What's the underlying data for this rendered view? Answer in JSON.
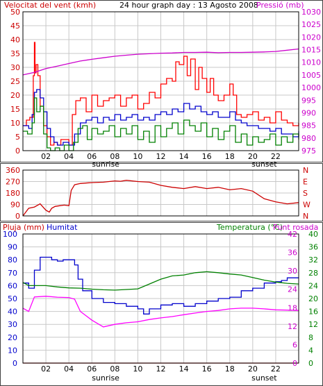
{
  "chart_data": [
    {
      "type": "line",
      "title": "24 hour graph day : 13 Agosto 2008",
      "left_axis_label": "Velocitat del vent (kmh)",
      "right_axis_label": "Pressió (mb)",
      "ylim": [
        0,
        50
      ],
      "yticks": [
        "0",
        "5",
        "10",
        "15",
        "20",
        "25",
        "30",
        "35",
        "40",
        "45",
        "50"
      ],
      "y2lim": [
        975,
        1030
      ],
      "y2ticks": [
        "975",
        "980",
        "985",
        "990",
        "995",
        "1000",
        "1005",
        "1010",
        "1015",
        "1020",
        "1025",
        "1030"
      ],
      "xlim": [
        0,
        24
      ],
      "xticks": [
        "02",
        "04",
        "06",
        "08",
        "10",
        "12",
        "14",
        "16",
        "18",
        "20",
        "22"
      ],
      "markers": [
        {
          "x": 7.2,
          "label": "sunrise"
        },
        {
          "x": 21.0,
          "label": "sunset"
        }
      ],
      "colors": {
        "gust": "#ff0000",
        "average": "#0000cc",
        "speed": "#008000",
        "pressure": "#cc00cc",
        "grid": "#c8c8c8"
      },
      "series": [
        {
          "axis": "left",
          "key": "gust",
          "x": [
            0,
            0.3,
            0.6,
            0.9,
            1.0,
            1.05,
            1.15,
            1.3,
            1.5,
            1.8,
            2.1,
            2.4,
            2.7,
            3.0,
            3.3,
            3.6,
            4.0,
            4.3,
            4.6,
            5.0,
            5.5,
            6.0,
            6.5,
            7.0,
            7.5,
            8.0,
            8.5,
            9.0,
            9.5,
            10.0,
            10.5,
            11.0,
            11.5,
            12.0,
            12.5,
            13.0,
            13.3,
            13.6,
            14.0,
            14.3,
            14.6,
            15.0,
            15.3,
            15.6,
            16.0,
            16.3,
            16.6,
            17.0,
            17.5,
            18.0,
            18.3,
            18.6,
            19.0,
            19.5,
            20.0,
            20.5,
            21.0,
            21.5,
            22.0,
            22.5,
            23.0,
            23.5,
            24.0
          ],
          "y": [
            9,
            11,
            12,
            27,
            39,
            28,
            31,
            27,
            16,
            9,
            5,
            2,
            3,
            2,
            4,
            4,
            2,
            13,
            18,
            19,
            14,
            20,
            16,
            18,
            19,
            20,
            16,
            19,
            20,
            15,
            17,
            21,
            19,
            24,
            26,
            25,
            32,
            31,
            34,
            27,
            33,
            22,
            30,
            26,
            21,
            26,
            20,
            18,
            20,
            24,
            20,
            13,
            12,
            13,
            14,
            11,
            12,
            10,
            14,
            11,
            10,
            9,
            10
          ]
        },
        {
          "axis": "left",
          "key": "average",
          "x": [
            0,
            0.5,
            0.8,
            1.0,
            1.2,
            1.5,
            1.8,
            2.1,
            2.4,
            2.7,
            3.0,
            3.5,
            4.0,
            4.5,
            5.0,
            5.5,
            6.0,
            6.5,
            7.0,
            7.5,
            8.0,
            8.5,
            9.0,
            9.5,
            10.0,
            10.5,
            11.0,
            11.5,
            12.0,
            12.5,
            13.0,
            13.5,
            14.0,
            14.5,
            15.0,
            15.5,
            16.0,
            16.5,
            17.0,
            17.5,
            18.0,
            18.5,
            19.0,
            19.5,
            20.0,
            20.5,
            21.0,
            21.5,
            22.0,
            22.5,
            23.0,
            23.5,
            24.0
          ],
          "y": [
            9,
            8,
            13,
            21,
            22,
            19,
            14,
            8,
            5,
            3,
            2,
            3,
            2,
            6,
            10,
            11,
            12,
            10,
            12,
            11,
            13,
            11,
            12,
            13,
            11,
            12,
            11,
            13,
            14,
            13,
            15,
            14,
            17,
            15,
            16,
            14,
            13,
            14,
            12,
            12,
            14,
            11,
            10,
            9,
            9,
            8,
            8,
            7,
            8,
            6,
            6,
            5,
            7
          ]
        },
        {
          "axis": "left",
          "key": "speed",
          "x": [
            0,
            0.4,
            0.8,
            1.0,
            1.2,
            1.5,
            1.8,
            2.1,
            2.4,
            2.8,
            3.2,
            3.6,
            4.0,
            4.4,
            4.8,
            5.2,
            5.6,
            6.0,
            6.5,
            7.0,
            7.5,
            8.0,
            8.5,
            9.0,
            9.5,
            10.0,
            10.5,
            11.0,
            11.5,
            12.0,
            12.5,
            13.0,
            13.5,
            14.0,
            14.5,
            15.0,
            15.5,
            16.0,
            16.5,
            17.0,
            17.5,
            18.0,
            18.5,
            19.0,
            19.5,
            20.0,
            20.5,
            21.0,
            21.5,
            22.0,
            22.5,
            23.0,
            23.5,
            24.0
          ],
          "y": [
            7,
            6,
            10,
            19,
            14,
            16,
            6,
            1,
            0,
            1,
            0,
            2,
            0,
            3,
            8,
            9,
            4,
            8,
            6,
            7,
            9,
            5,
            8,
            6,
            9,
            4,
            7,
            3,
            9,
            5,
            8,
            10,
            6,
            11,
            9,
            7,
            10,
            5,
            8,
            4,
            7,
            9,
            3,
            6,
            2,
            5,
            3,
            4,
            6,
            2,
            5,
            3,
            6,
            4
          ]
        },
        {
          "axis": "right",
          "key": "pressure",
          "x": [
            0,
            1,
            2,
            3,
            4,
            5,
            6,
            7,
            8,
            9,
            10,
            11,
            12,
            13,
            14,
            15,
            16,
            17,
            18,
            19,
            20,
            21,
            22,
            23,
            24
          ],
          "y": [
            1005,
            1006,
            1007.5,
            1008.5,
            1009.5,
            1010.5,
            1011.2,
            1011.8,
            1012.4,
            1012.8,
            1013.2,
            1013.4,
            1013.6,
            1013.7,
            1013.9,
            1013.9,
            1014,
            1013.8,
            1013.9,
            1013.9,
            1014,
            1014.1,
            1014.3,
            1014.8,
            1015.3
          ]
        }
      ]
    },
    {
      "type": "line",
      "left_ticks": [
        "0",
        "90",
        "180",
        "270",
        "360"
      ],
      "ylim": [
        0,
        360
      ],
      "right_labels": [
        "N",
        "W",
        "S",
        "E",
        "N"
      ],
      "xlim": [
        0,
        24
      ],
      "colors": {
        "direction": "#cc0000",
        "grid": "#c8c8c8"
      },
      "series": [
        {
          "key": "direction",
          "x": [
            0,
            0.5,
            1.0,
            1.5,
            2.0,
            2.3,
            2.5,
            2.8,
            3.2,
            3.6,
            4.0,
            4.2,
            4.5,
            5.0,
            6.0,
            7.0,
            8.0,
            8.5,
            9.0,
            10.0,
            11.0,
            12.0,
            13.0,
            14.0,
            15.0,
            16.0,
            17.0,
            18.0,
            19.0,
            20.0,
            21.0,
            22.0,
            23.0,
            24.0
          ],
          "y": [
            0,
            60,
            70,
            95,
            45,
            30,
            60,
            75,
            80,
            85,
            80,
            200,
            245,
            255,
            262,
            265,
            275,
            272,
            280,
            270,
            265,
            240,
            225,
            215,
            230,
            215,
            225,
            205,
            215,
            195,
            135,
            110,
            95,
            105
          ]
        }
      ]
    },
    {
      "type": "line",
      "left_axis_label": "Pluja (mm)",
      "left_axis_label2": "Humitat",
      "right_axis_label": "Temperatura (°C)",
      "right_axis_label2": "Punt rosada",
      "ylim": [
        0,
        100
      ],
      "yticks": [
        "0",
        "10",
        "20",
        "30",
        "40",
        "50",
        "60",
        "70",
        "80",
        "90",
        "100"
      ],
      "y2lim": [
        0,
        40
      ],
      "y2ticks": [
        "0",
        "4",
        "8",
        "12",
        "16",
        "20",
        "24",
        "28",
        "32",
        "36",
        "40"
      ],
      "yticks_inner": [
        "0",
        "6",
        "12",
        "18",
        "24",
        "30",
        "36",
        "42"
      ],
      "xlim": [
        0,
        24
      ],
      "xticks": [
        "02",
        "04",
        "06",
        "08",
        "10",
        "12",
        "14",
        "16",
        "18",
        "20",
        "22"
      ],
      "markers": [
        {
          "x": 7.2,
          "label": "sunrise"
        },
        {
          "x": 21.0,
          "label": "sunset"
        }
      ],
      "colors": {
        "humidity": "#0000cc",
        "temperature": "#008000",
        "dewpoint": "#ff00ff",
        "rain": "#cc0000",
        "grid": "#c8c8c8"
      },
      "series": [
        {
          "axis": "left",
          "key": "humidity",
          "x": [
            0,
            0.5,
            1.0,
            1.5,
            2.0,
            2.5,
            3.0,
            3.5,
            4.0,
            4.5,
            4.8,
            5.2,
            6.0,
            7.0,
            8.0,
            9.0,
            10.0,
            10.5,
            11.0,
            12.0,
            13.0,
            14.0,
            15.0,
            16.0,
            17.0,
            18.0,
            19.0,
            20.0,
            21.0,
            22.0,
            22.5,
            23.0,
            24.0
          ],
          "y": [
            62,
            58,
            72,
            82,
            82,
            80,
            79,
            80,
            80,
            76,
            65,
            56,
            50,
            47,
            46,
            44,
            42,
            38,
            42,
            45,
            46,
            44,
            46,
            48,
            50,
            51,
            56,
            58,
            62,
            63,
            64,
            66,
            66
          ]
        },
        {
          "axis": "right",
          "key": "temperature",
          "x": [
            0,
            0.5,
            1,
            2,
            3,
            4,
            5,
            6,
            7,
            8,
            9,
            10,
            11,
            12,
            13,
            14,
            15,
            16,
            17,
            18,
            19,
            20,
            21,
            22,
            23,
            24
          ],
          "y": [
            25,
            24,
            24,
            24,
            23.6,
            23.3,
            23.2,
            22.9,
            22.7,
            22.6,
            22.8,
            23,
            24.5,
            26,
            27,
            27.3,
            28,
            28.3,
            28,
            27.6,
            27.3,
            26.5,
            25.7,
            25.1,
            24.7,
            24.5
          ]
        },
        {
          "axis": "right",
          "key": "dewpoint",
          "x": [
            0,
            0.5,
            1,
            2,
            3,
            4,
            4.5,
            5,
            6,
            7,
            8,
            9,
            10,
            11,
            12,
            13,
            14,
            15,
            16,
            17,
            18,
            19,
            20,
            21,
            22,
            23,
            24
          ],
          "y": [
            17,
            16,
            20.5,
            20.7,
            20.4,
            20.3,
            19.8,
            16,
            13.3,
            11.2,
            12,
            12.5,
            12.8,
            13.5,
            14,
            14.4,
            15,
            15.5,
            16,
            16.3,
            16.8,
            17,
            17,
            16.8,
            16.5,
            16.4,
            16.3
          ]
        },
        {
          "axis": "left",
          "key": "rain",
          "x": [
            0,
            24
          ],
          "y": [
            0,
            0
          ]
        }
      ]
    }
  ]
}
